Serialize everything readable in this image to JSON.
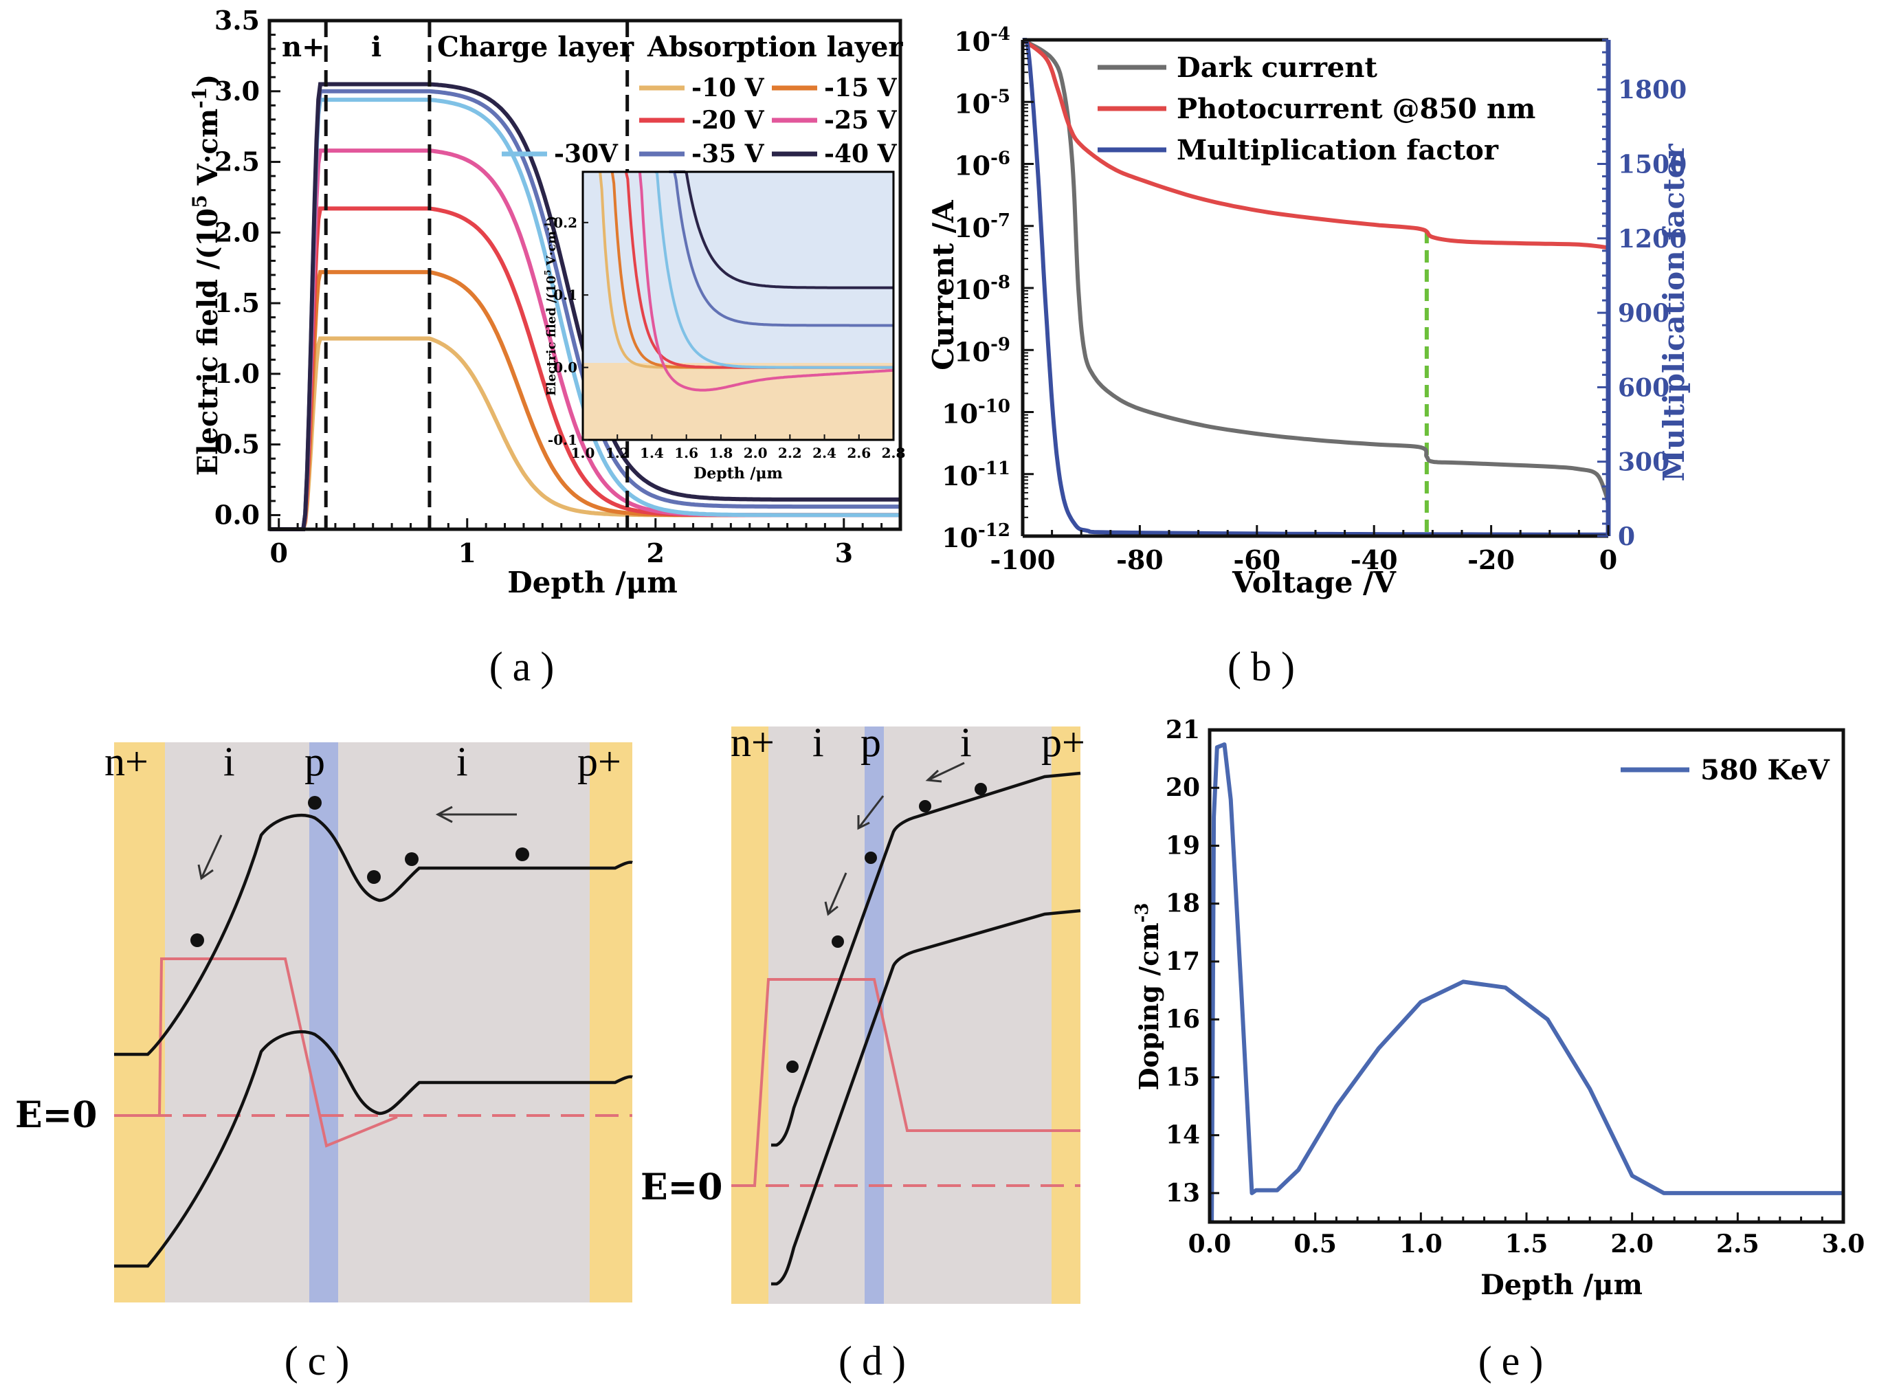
{
  "colors": {
    "v10": "#e6b66b",
    "v15": "#e07a2f",
    "v20": "#e5424a",
    "v25": "#e2579b",
    "v30": "#7fc1e6",
    "v35": "#6272b5",
    "v40": "#2a2448",
    "dark": "#6e6e6e",
    "photo": "#e04848",
    "mult": "#3a4fa0",
    "green": "#6cbf3a",
    "axis_blue": "#3a4fa0",
    "nplus": "#f7d88a",
    "ilayer": "#ddd8d8",
    "player": "#aab6e0",
    "pink": "#e0707a",
    "doping": "#4a68b0",
    "inset_top": "#dce6f4",
    "inset_bottom": "#f5dcb6"
  },
  "captions": {
    "a": "(a)",
    "b": "(b)",
    "c": "(c)",
    "d": "(d)",
    "e": "(e)"
  },
  "chart_data": [
    {
      "id": "a",
      "type": "line",
      "xlabel": "Depth /μm",
      "ylabel": "Electric field /(10^5 V·cm^-1)",
      "xlim": [
        -0.05,
        3.3
      ],
      "ylim": [
        -0.1,
        3.5
      ],
      "x_ticks": [
        "0",
        "1",
        "2",
        "3"
      ],
      "y_ticks": [
        "0.0",
        "0.5",
        "1.0",
        "1.5",
        "2.0",
        "2.5",
        "3.0",
        "3.5"
      ],
      "region_labels": [
        "n+",
        "i",
        "Charge layer",
        "Absorption layer"
      ],
      "region_boundaries": [
        0.25,
        0.8,
        1.85
      ],
      "series": [
        {
          "name": "-10 V",
          "plateau": 1.25,
          "drop": 1.28,
          "tail": 0.0,
          "color": "v10"
        },
        {
          "name": "-15 V",
          "plateau": 1.72,
          "drop": 1.4,
          "tail": 0.0,
          "color": "v15"
        },
        {
          "name": "-20 V",
          "plateau": 2.17,
          "drop": 1.49,
          "tail": 0.0,
          "color": "v20"
        },
        {
          "name": "-25 V",
          "plateau": 2.58,
          "drop": 1.55,
          "tail": 0.0,
          "color": "v25"
        },
        {
          "name": "-30V",
          "plateau": 2.94,
          "drop": 1.6,
          "tail": 0.0,
          "color": "v30"
        },
        {
          "name": "-35 V",
          "plateau": 3.0,
          "drop": 1.63,
          "tail": 0.06,
          "color": "v35"
        },
        {
          "name": "-40 V",
          "plateau": 3.05,
          "drop": 1.66,
          "tail": 0.11,
          "color": "v40"
        }
      ],
      "inset": {
        "xlabel": "Depth /μm",
        "ylabel": "Electric filed /(10^5 V·cm^-1)",
        "xlim": [
          1.0,
          2.8
        ],
        "ylim": [
          -0.1,
          0.27
        ],
        "x_ticks": [
          "1.0",
          "1.2",
          "1.4",
          "1.6",
          "1.8",
          "2.0",
          "2.2",
          "2.4",
          "2.6",
          "2.8"
        ],
        "y_ticks": [
          "-0.1",
          "0.0",
          "0.1",
          "0.2"
        ]
      }
    },
    {
      "id": "b",
      "type": "line",
      "xlabel": "Voltage /V",
      "ylabel": "Current /A",
      "y2label": "Multiplication  factor",
      "xlim": [
        -100,
        0
      ],
      "ylog_range": [
        -12,
        -4
      ],
      "y2lim": [
        0,
        2000
      ],
      "x_ticks": [
        "-100",
        "-80",
        "-60",
        "-40",
        "-20",
        "0"
      ],
      "y_ticks_exp": [
        "-4",
        "-5",
        "-6",
        "-7",
        "-8",
        "-9",
        "-10",
        "-11",
        "-12"
      ],
      "y2_ticks": [
        "0",
        "300",
        "600",
        "900",
        "1200",
        "1500",
        "1800"
      ],
      "marker_voltage": -31,
      "series": [
        {
          "name": "Dark  current",
          "color": "dark",
          "points": [
            [
              -100,
              -4
            ],
            [
              -95,
              -4.3
            ],
            [
              -93,
              -4.8
            ],
            [
              -91.5,
              -6
            ],
            [
              -90.5,
              -8
            ],
            [
              -89.5,
              -9
            ],
            [
              -88,
              -9.4
            ],
            [
              -85,
              -9.7
            ],
            [
              -80,
              -9.95
            ],
            [
              -70,
              -10.2
            ],
            [
              -60,
              -10.35
            ],
            [
              -50,
              -10.45
            ],
            [
              -40,
              -10.52
            ],
            [
              -32,
              -10.57
            ],
            [
              -31,
              -10.72
            ],
            [
              -30,
              -10.8
            ],
            [
              -25,
              -10.82
            ],
            [
              -10,
              -10.88
            ],
            [
              -5,
              -10.92
            ],
            [
              -2,
              -11.0
            ],
            [
              -0.5,
              -11.3
            ],
            [
              0,
              -11.5
            ]
          ]
        },
        {
          "name": "Photocurrent @850 nm",
          "color": "photo",
          "points": [
            [
              -100,
              -4
            ],
            [
              -96,
              -4.3
            ],
            [
              -94,
              -4.8
            ],
            [
              -92,
              -5.4
            ],
            [
              -90,
              -5.7
            ],
            [
              -85,
              -6.05
            ],
            [
              -80,
              -6.25
            ],
            [
              -70,
              -6.55
            ],
            [
              -60,
              -6.75
            ],
            [
              -50,
              -6.88
            ],
            [
              -40,
              -6.98
            ],
            [
              -32,
              -7.05
            ],
            [
              -30,
              -7.18
            ],
            [
              -25,
              -7.25
            ],
            [
              -15,
              -7.28
            ],
            [
              -5,
              -7.3
            ],
            [
              0,
              -7.35
            ]
          ]
        },
        {
          "name": "Multiplication factor",
          "color": "mult",
          "axis": "y2",
          "points": [
            [
              -100,
              2000
            ],
            [
              -99,
              1950
            ],
            [
              -97.5,
              1500
            ],
            [
              -96,
              900
            ],
            [
              -94.5,
              400
            ],
            [
              -93,
              150
            ],
            [
              -91,
              45
            ],
            [
              -89,
              22
            ],
            [
              -85,
              15
            ],
            [
              -60,
              10
            ],
            [
              -40,
              8
            ],
            [
              0,
              6
            ]
          ]
        }
      ]
    },
    {
      "id": "e",
      "type": "line",
      "xlabel": "Depth /μm",
      "ylabel": "Doping /cm^-3",
      "xlim": [
        0.0,
        3.0
      ],
      "ylim": [
        12.5,
        21.0
      ],
      "x_ticks": [
        "0.0",
        "0.5",
        "1.0",
        "1.5",
        "2.0",
        "2.5",
        "3.0"
      ],
      "y_ticks": [
        "13",
        "14",
        "15",
        "16",
        "17",
        "18",
        "19",
        "20",
        "21"
      ],
      "series": [
        {
          "name": "580 KeV",
          "color": "doping",
          "points": [
            [
              0.01,
              12.5
            ],
            [
              0.02,
              19.5
            ],
            [
              0.035,
              20.7
            ],
            [
              0.07,
              20.75
            ],
            [
              0.1,
              19.8
            ],
            [
              0.15,
              16.5
            ],
            [
              0.2,
              13.0
            ],
            [
              0.22,
              13.05
            ],
            [
              0.32,
              13.05
            ],
            [
              0.42,
              13.4
            ],
            [
              0.6,
              14.5
            ],
            [
              0.8,
              15.5
            ],
            [
              1.0,
              16.3
            ],
            [
              1.2,
              16.65
            ],
            [
              1.4,
              16.55
            ],
            [
              1.6,
              16.0
            ],
            [
              1.8,
              14.8
            ],
            [
              2.0,
              13.3
            ],
            [
              2.15,
              13.0
            ],
            [
              3.0,
              13.0
            ]
          ]
        }
      ]
    }
  ],
  "diagrams": {
    "c": {
      "labels": [
        "n+",
        "i",
        "p",
        "i",
        "p+"
      ],
      "e0": "E=0"
    },
    "d": {
      "labels": [
        "n+",
        "i",
        "p",
        "i",
        "p+"
      ],
      "e0": "E=0"
    }
  }
}
